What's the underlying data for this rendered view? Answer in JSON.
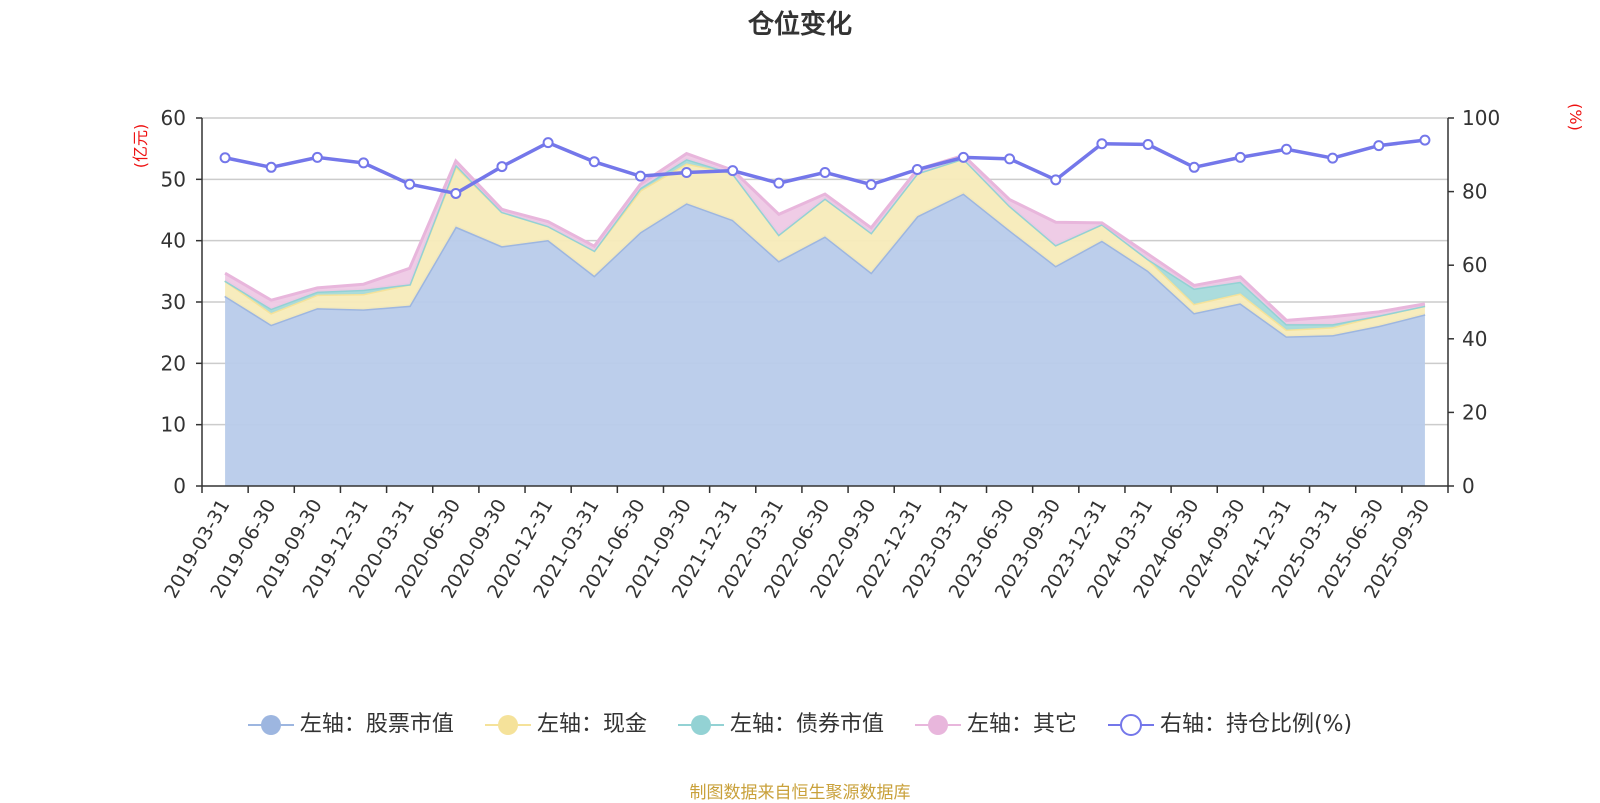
{
  "chart_data": {
    "type": "area",
    "title": "仓位变化",
    "left_axis_unit": "(亿元)",
    "right_axis_unit": "(%)",
    "left_ylim": [
      0,
      60
    ],
    "left_ticks": [
      0,
      10,
      20,
      30,
      40,
      50,
      60
    ],
    "right_ylim": [
      0,
      100
    ],
    "right_ticks": [
      0,
      20,
      40,
      60,
      80,
      100
    ],
    "categories": [
      "2019-03-31",
      "2019-06-30",
      "2019-09-30",
      "2019-12-31",
      "2020-03-31",
      "2020-06-30",
      "2020-09-30",
      "2020-12-31",
      "2021-03-31",
      "2021-06-30",
      "2021-09-30",
      "2021-12-31",
      "2022-03-31",
      "2022-06-30",
      "2022-09-30",
      "2022-12-31",
      "2023-03-31",
      "2023-06-30",
      "2023-09-30",
      "2023-12-31",
      "2024-03-31",
      "2024-06-30",
      "2024-09-30",
      "2024-12-31",
      "2025-03-31",
      "2025-06-30",
      "2025-09-30"
    ],
    "stacked_series": [
      {
        "name": "左轴：股票市值",
        "axis": "left",
        "color": "#9db6e0",
        "fill": "#b8cbea",
        "values": [
          31.0,
          26.3,
          29.0,
          28.8,
          29.4,
          42.3,
          39.1,
          40.1,
          34.3,
          41.4,
          46.1,
          43.4,
          36.7,
          40.7,
          34.8,
          44.0,
          47.7,
          41.7,
          35.9,
          40.0,
          35.1,
          28.2,
          29.8,
          24.4,
          24.6,
          26.1,
          28.0
        ]
      },
      {
        "name": "左轴：现金",
        "axis": "left",
        "color": "#f5e29a",
        "fill": "#f7ebb9",
        "values": [
          2.5,
          1.9,
          2.2,
          2.5,
          3.5,
          9.8,
          5.6,
          2.3,
          4.1,
          6.8,
          6.5,
          7.6,
          4.3,
          6.2,
          6.5,
          7.0,
          5.7,
          4.0,
          3.4,
          2.7,
          1.9,
          1.5,
          1.6,
          1.1,
          1.3,
          1.7,
          1.4
        ]
      },
      {
        "name": "左轴：债券市值",
        "axis": "left",
        "color": "#93d2d4",
        "fill": "#a6dadb",
        "values": [
          0,
          0.7,
          0.5,
          0.7,
          0,
          0.3,
          0,
          0,
          0,
          0.4,
          0.7,
          0,
          0,
          0,
          0,
          0,
          0,
          0,
          0,
          0,
          0,
          2.5,
          1.9,
          0.9,
          0.5,
          0,
          0
        ]
      },
      {
        "name": "左轴：其它",
        "axis": "left",
        "color": "#e8b6dc",
        "fill": "#eec9e5",
        "values": [
          1.2,
          1.4,
          0.6,
          0.9,
          2.6,
          0.6,
          0.4,
          0.7,
          0.7,
          0.6,
          0.9,
          0.5,
          3.3,
          0.7,
          0.8,
          0.6,
          0.5,
          1.0,
          3.7,
          0.2,
          0.8,
          0.5,
          0.8,
          0.6,
          1.2,
          0.6,
          0.3
        ]
      }
    ],
    "line_series": {
      "name": "右轴：持仓比例(%)",
      "axis": "right",
      "color": "#7477ea",
      "values": [
        89.2,
        86.6,
        89.3,
        87.8,
        82.0,
        79.5,
        86.8,
        93.3,
        88.1,
        84.2,
        85.2,
        85.7,
        82.3,
        85.2,
        81.9,
        86.0,
        89.3,
        88.9,
        83.2,
        93.0,
        92.8,
        86.6,
        89.3,
        91.5,
        89.1,
        92.5,
        94.0
      ]
    },
    "legend_position": "bottom-center",
    "grid": true
  },
  "legend_items": [
    "左轴：股票市值",
    "左轴：现金",
    "左轴：债券市值",
    "左轴：其它",
    "右轴：持仓比例(%)"
  ],
  "source_note": "制图数据来自恒生聚源数据库"
}
